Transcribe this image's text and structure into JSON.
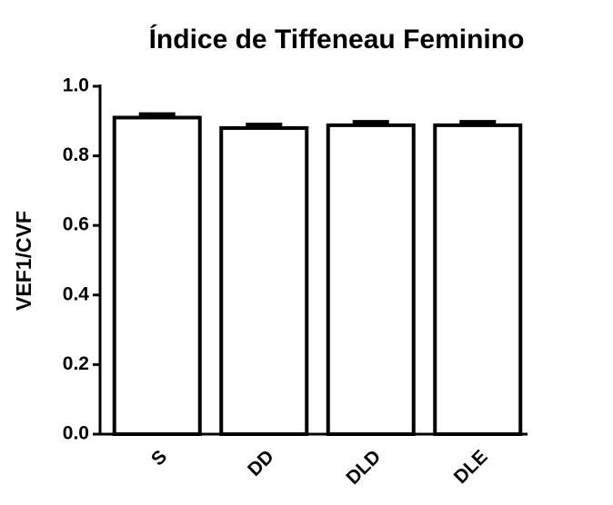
{
  "chart_data": {
    "type": "bar",
    "title": "Índice de Tiffeneau Feminino",
    "ylabel": "VEF1/CVF",
    "categories": [
      "S",
      "DD",
      "DLD",
      "DLE"
    ],
    "values": [
      0.91,
      0.88,
      0.888,
      0.888
    ],
    "errors": [
      0.01,
      0.01,
      0.01,
      0.01
    ],
    "color": "#ffffff",
    "ylim": [
      0,
      1.0
    ],
    "yticks": [
      {
        "value": 0,
        "label": "0.0"
      },
      0.2,
      0.4,
      0.6,
      0.8,
      {
        "value": 1.0,
        "label": "1.0"
      }
    ]
  }
}
